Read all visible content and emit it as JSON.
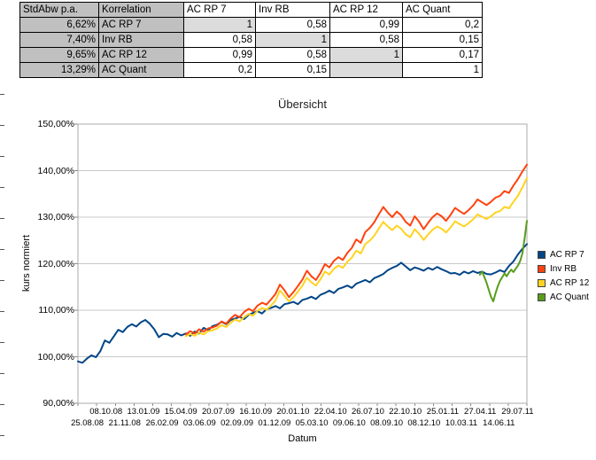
{
  "table": {
    "header_bg": "#C0C0C0",
    "diag_bg": "#DCDCDC",
    "col_headers": [
      "StdAbw p.a.",
      "Korrelation",
      "AC RP 7",
      "Inv RB",
      "AC RP 12",
      "AC Quant"
    ],
    "rows": [
      {
        "stdabw": "6,62%",
        "label": "AC RP 7",
        "shaded_col": 0,
        "values": [
          "1",
          "0,58",
          "0,99",
          "0,2"
        ]
      },
      {
        "stdabw": "7,40%",
        "label": "Inv RB",
        "shaded_col": 1,
        "values": [
          "0,58",
          "1",
          "0,58",
          "0,15"
        ]
      },
      {
        "stdabw": "9,65%",
        "label": "AC RP 12",
        "shaded_col": 2,
        "values": [
          "0,99",
          "0,58",
          "1",
          "0,17"
        ]
      },
      {
        "stdabw": "13,29%",
        "label": "AC Quant",
        "shaded_col": 2,
        "values": [
          "0,2",
          "0,15",
          "",
          "1"
        ]
      }
    ]
  },
  "chart_data": {
    "type": "line",
    "title": "Übersicht",
    "xlabel": "Datum",
    "ylabel": "kurs normiert",
    "ylim": [
      90,
      150
    ],
    "grid": "horizontal",
    "legend_position": "right",
    "y_ticks": [
      "90,00%",
      "100,00%",
      "110,00%",
      "120,00%",
      "130,00%",
      "140,00%",
      "150,00%"
    ],
    "x_ticks": [
      "25.08.08",
      "08.10.08",
      "21.11.08",
      "13.01.09",
      "26.02.09",
      "15.04.09",
      "03.06.09",
      "20.07.09",
      "02.09.09",
      "16.10.09",
      "01.12.09",
      "20.01.10",
      "05.03.10",
      "22.04.10",
      "09.06.10",
      "26.07.10",
      "08.09.10",
      "22.10.10",
      "08.12.10",
      "25.01.11",
      "10.03.11",
      "27.04.11",
      "14.06.11",
      "29.07.11"
    ],
    "series": [
      {
        "name": "AC RP 7",
        "color": "#004586",
        "start": 0.0,
        "step": 0.01,
        "values": [
          99.0,
          98.7,
          99.6,
          100.3,
          99.9,
          101.2,
          103.5,
          103.0,
          104.4,
          105.8,
          105.3,
          106.4,
          107.0,
          106.5,
          107.4,
          107.9,
          107.1,
          105.9,
          104.2,
          104.9,
          104.8,
          104.3,
          105.1,
          104.6,
          105.0,
          104.5,
          105.4,
          105.0,
          106.2,
          105.7,
          106.6,
          106.9,
          107.5,
          107.0,
          107.9,
          108.2,
          108.6,
          108.1,
          109.0,
          109.4,
          109.8,
          109.3,
          110.2,
          110.5,
          110.9,
          110.4,
          111.3,
          111.5,
          111.8,
          111.3,
          112.2,
          112.5,
          112.9,
          112.4,
          113.3,
          113.7,
          114.2,
          113.7,
          114.6,
          114.9,
          115.3,
          114.8,
          115.7,
          116.1,
          116.5,
          116.0,
          116.9,
          117.3,
          117.8,
          118.6,
          119.1,
          119.5,
          120.2,
          119.4,
          118.6,
          119.2,
          118.9,
          118.5,
          119.1,
          118.7,
          119.3,
          118.8,
          118.4,
          117.9,
          118.0,
          117.6,
          118.3,
          117.9,
          118.4,
          118.0,
          118.3,
          117.8,
          117.7,
          118.1,
          118.6,
          118.2,
          119.5,
          120.5,
          122.0,
          123.2,
          124.2
        ]
      },
      {
        "name": "Inv RB",
        "color": "#FF420E",
        "start": 0.24,
        "step": 0.01,
        "values": [
          104.8,
          105.5,
          105.0,
          105.9,
          105.4,
          106.1,
          106.3,
          106.7,
          107.6,
          107.1,
          108.2,
          109.0,
          108.5,
          109.6,
          110.3,
          109.8,
          111.0,
          111.6,
          111.2,
          112.3,
          113.5,
          115.5,
          114.3,
          112.8,
          113.9,
          115.2,
          116.6,
          118.5,
          117.3,
          116.5,
          118.0,
          119.9,
          119.2,
          120.6,
          121.4,
          120.8,
          122.3,
          123.4,
          125.2,
          124.5,
          126.8,
          127.7,
          128.9,
          130.6,
          132.2,
          131.0,
          130.0,
          131.2,
          130.4,
          129.0,
          128.2,
          130.2,
          129.0,
          127.4,
          128.8,
          130.0,
          130.8,
          130.2,
          129.2,
          130.5,
          132.0,
          131.3,
          130.7,
          131.5,
          132.5,
          133.8,
          133.2,
          132.6,
          133.3,
          134.2,
          134.6,
          135.6,
          135.2,
          136.8,
          138.2,
          139.8,
          141.3
        ]
      },
      {
        "name": "AC RP 12",
        "color": "#FFD320",
        "start": 0.24,
        "step": 0.01,
        "values": [
          104.4,
          104.9,
          104.5,
          105.2,
          104.8,
          105.5,
          105.7,
          106.1,
          106.8,
          106.4,
          107.3,
          108.0,
          107.6,
          108.5,
          109.2,
          108.8,
          109.9,
          110.5,
          110.1,
          111.0,
          112.1,
          114.2,
          113.1,
          111.9,
          112.8,
          114.0,
          115.3,
          117.0,
          116.0,
          115.3,
          116.6,
          118.3,
          117.7,
          118.9,
          119.6,
          119.1,
          120.4,
          121.3,
          122.8,
          122.2,
          124.2,
          125.0,
          126.0,
          127.5,
          129.0,
          128.0,
          127.2,
          128.2,
          127.5,
          126.3,
          125.7,
          127.4,
          126.4,
          125.1,
          126.3,
          127.3,
          128.0,
          127.5,
          126.7,
          127.8,
          129.1,
          128.5,
          128.0,
          128.7,
          129.5,
          130.6,
          130.1,
          129.6,
          130.2,
          131.0,
          131.3,
          132.2,
          131.9,
          133.3,
          134.6,
          136.4,
          138.4
        ]
      },
      {
        "name": "AC Quant",
        "color": "#579D1C",
        "start": 0.895,
        "step": 0.005,
        "values": [
          117.6,
          118.3,
          117.2,
          115.9,
          114.4,
          112.9,
          111.9,
          113.6,
          115.1,
          116.3,
          117.1,
          117.9,
          117.3,
          118.1,
          118.7,
          118.2,
          118.9,
          119.6,
          120.6,
          122.2,
          125.6,
          129.2
        ]
      }
    ]
  }
}
